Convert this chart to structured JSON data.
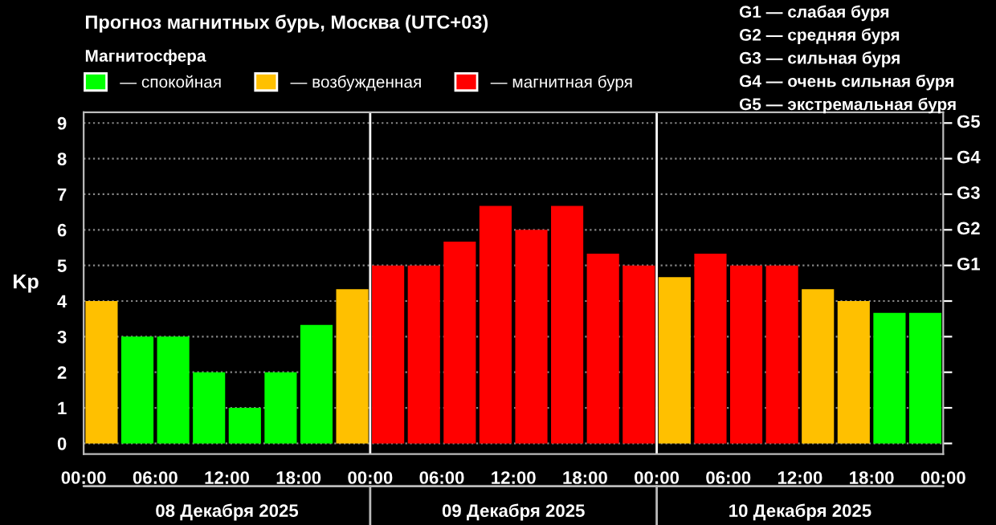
{
  "chart_data": {
    "type": "bar",
    "title": "Прогноз магнитных бурь, Москва (UTC+03)",
    "ylabel": "Kp",
    "legend_title": "Магнитосфера",
    "legend": "top left",
    "x": [
      "2025-12-08T01:30",
      "2025-12-08T04:30",
      "2025-12-08T07:30",
      "2025-12-08T10:30",
      "2025-12-08T13:30",
      "2025-12-08T16:30",
      "2025-12-08T19:30",
      "2025-12-08T22:30",
      "2025-12-09T01:30",
      "2025-12-09T04:30",
      "2025-12-09T07:30",
      "2025-12-09T10:30",
      "2025-12-09T13:30",
      "2025-12-09T16:30",
      "2025-12-09T19:30",
      "2025-12-09T22:30",
      "2025-12-10T01:30",
      "2025-12-10T04:30",
      "2025-12-10T07:30",
      "2025-12-10T10:30",
      "2025-12-10T13:30",
      "2025-12-10T16:30",
      "2025-12-10T19:30",
      "2025-12-10T22:30"
    ],
    "series": [
      {
        "name": "— спокойная",
        "color": "#00ff00",
        "values": [
          null,
          3,
          3,
          2,
          1,
          2,
          3.33,
          null,
          null,
          null,
          null,
          null,
          null,
          null,
          null,
          null,
          null,
          null,
          null,
          null,
          null,
          null,
          3.67,
          3.67
        ]
      },
      {
        "name": "— возбужденная",
        "color": "#ffc000",
        "values": [
          4,
          null,
          null,
          null,
          null,
          null,
          null,
          4.33,
          null,
          null,
          null,
          null,
          null,
          null,
          null,
          null,
          4.67,
          null,
          null,
          null,
          4.33,
          4,
          null,
          null
        ]
      },
      {
        "name": "— магнитная буря",
        "color": "#ff0000",
        "values": [
          null,
          null,
          null,
          null,
          null,
          null,
          null,
          null,
          5,
          5,
          5.67,
          6.67,
          6,
          6.67,
          5.33,
          5,
          null,
          5.33,
          5,
          5,
          null,
          null,
          null,
          null
        ]
      }
    ],
    "xlim": [
      "2025-12-08T00:00",
      "2025-12-11T00:00"
    ],
    "xticks": [
      {
        "value": "2025-12-08T00:00",
        "label": "00:00"
      },
      {
        "value": "2025-12-08T06:00",
        "label": "06:00"
      },
      {
        "value": "2025-12-08T12:00",
        "label": "12:00"
      },
      {
        "value": "2025-12-08T18:00",
        "label": "18:00"
      },
      {
        "value": "2025-12-09T00:00",
        "label": "00:00"
      },
      {
        "value": "2025-12-09T06:00",
        "label": "06:00"
      },
      {
        "value": "2025-12-09T12:00",
        "label": "12:00"
      },
      {
        "value": "2025-12-09T18:00",
        "label": "18:00"
      },
      {
        "value": "2025-12-10T00:00",
        "label": "00:00"
      },
      {
        "value": "2025-12-10T06:00",
        "label": "06:00"
      },
      {
        "value": "2025-12-10T12:00",
        "label": "12:00"
      },
      {
        "value": "2025-12-10T18:00",
        "label": "18:00"
      },
      {
        "value": "2025-12-11T00:00",
        "label": "00:00"
      }
    ],
    "ylim": [
      -0.3,
      9.3
    ],
    "yticks": [
      0,
      1,
      2,
      3,
      4,
      5,
      6,
      7,
      8,
      9
    ],
    "grid": "y",
    "line_style": "dotted",
    "ref_lines": [
      {
        "axis": "x",
        "value": "2025-12-09T00:00",
        "color": "#ffffff"
      },
      {
        "axis": "x",
        "value": "2025-12-10T00:00",
        "color": "#ffffff"
      }
    ],
    "annotations": [
      "08 Декабря 2025",
      "09 Декабря 2025",
      "10 Декабря 2025",
      "G1 — слабая буря",
      "G2 — средняя буря",
      "G3 — сильная буря",
      "G4 — очень сильная буря",
      "G5 — экстремальная буря",
      "G1",
      "G2",
      "G3",
      "G4",
      "G5"
    ]
  }
}
